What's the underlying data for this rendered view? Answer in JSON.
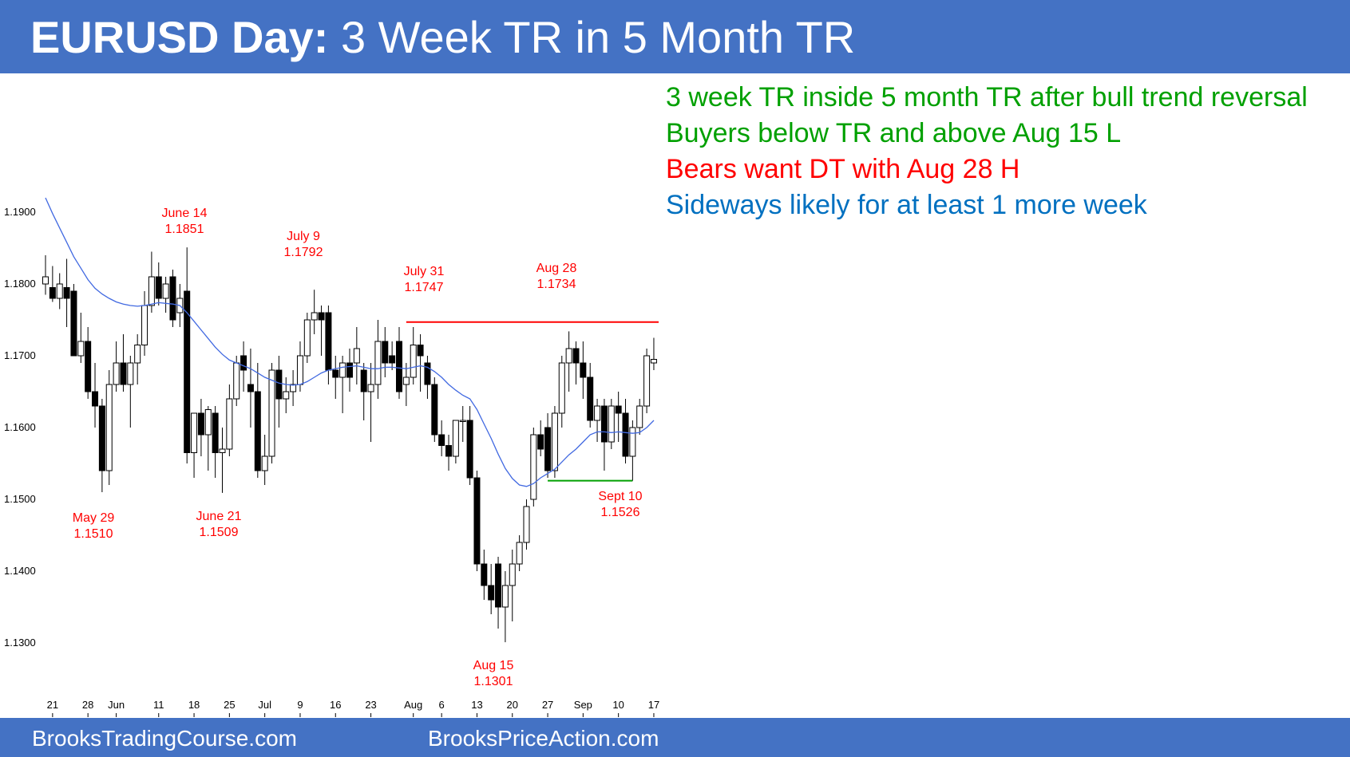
{
  "header": {
    "title_bold": "EURUSD Day:",
    "title_rest": " 3 Week TR in 5 Month TR",
    "background": "#4472c4"
  },
  "notes": [
    {
      "text": "3 week TR inside 5 month TR after bull trend reversal",
      "color": "#00a000"
    },
    {
      "text": "Buyers below TR and above Aug 15 L",
      "color": "#00a000"
    },
    {
      "text": "Bears want DT with Aug 28 H",
      "color": "#ff0000"
    },
    {
      "text": "Sideways likely for at least 1 more week",
      "color": "#0070c0"
    }
  ],
  "footer": {
    "left": "BrooksTradingCourse.com",
    "right": "BrooksPriceAction.com"
  },
  "chart_data": {
    "type": "candlestick",
    "ylim": [
      1.128,
      1.1925
    ],
    "yticks": [
      "1.1900",
      "1.1800",
      "1.1700",
      "1.1600",
      "1.1500",
      "1.1400",
      "1.1300"
    ],
    "x_tick_labels": [
      {
        "label": "21",
        "bar": 1
      },
      {
        "label": "28",
        "bar": 6
      },
      {
        "label": "Jun",
        "bar": 10
      },
      {
        "label": "11",
        "bar": 16
      },
      {
        "label": "18",
        "bar": 21
      },
      {
        "label": "25",
        "bar": 26
      },
      {
        "label": "Jul",
        "bar": 31
      },
      {
        "label": "9",
        "bar": 36
      },
      {
        "label": "16",
        "bar": 41
      },
      {
        "label": "23",
        "bar": 46
      },
      {
        "label": "Aug",
        "bar": 52
      },
      {
        "label": "6",
        "bar": 56
      },
      {
        "label": "13",
        "bar": 61
      },
      {
        "label": "20",
        "bar": 66
      },
      {
        "label": "27",
        "bar": 71
      },
      {
        "label": "Sep",
        "bar": 76
      },
      {
        "label": "10",
        "bar": 81
      },
      {
        "label": "17",
        "bar": 86
      }
    ],
    "candles": [
      [
        1.18,
        1.184,
        1.1785,
        1.181
      ],
      [
        1.1795,
        1.1825,
        1.1775,
        1.178
      ],
      [
        1.178,
        1.1815,
        1.1765,
        1.18
      ],
      [
        1.1795,
        1.1835,
        1.174,
        1.178
      ],
      [
        1.179,
        1.18,
        1.17,
        1.17
      ],
      [
        1.17,
        1.176,
        1.169,
        1.172
      ],
      [
        1.172,
        1.174,
        1.164,
        1.165
      ],
      [
        1.165,
        1.169,
        1.16,
        1.163
      ],
      [
        1.163,
        1.164,
        1.151,
        1.154
      ],
      [
        1.154,
        1.168,
        1.152,
        1.166
      ],
      [
        1.166,
        1.172,
        1.165,
        1.169
      ],
      [
        1.169,
        1.173,
        1.165,
        1.166
      ],
      [
        1.166,
        1.17,
        1.16,
        1.169
      ],
      [
        1.169,
        1.173,
        1.166,
        1.1715
      ],
      [
        1.1715,
        1.179,
        1.17,
        1.177
      ],
      [
        1.177,
        1.1845,
        1.176,
        1.181
      ],
      [
        1.181,
        1.183,
        1.177,
        1.178
      ],
      [
        1.178,
        1.181,
        1.176,
        1.18
      ],
      [
        1.181,
        1.182,
        1.174,
        1.175
      ],
      [
        1.176,
        1.18,
        1.174,
        1.178
      ],
      [
        1.179,
        1.1851,
        1.155,
        1.1565
      ],
      [
        1.1565,
        1.162,
        1.153,
        1.162
      ],
      [
        1.162,
        1.164,
        1.156,
        1.159
      ],
      [
        1.159,
        1.163,
        1.154,
        1.1625
      ],
      [
        1.162,
        1.163,
        1.153,
        1.1565
      ],
      [
        1.1565,
        1.16,
        1.1509,
        1.157
      ],
      [
        1.157,
        1.166,
        1.156,
        1.164
      ],
      [
        1.164,
        1.17,
        1.163,
        1.169
      ],
      [
        1.17,
        1.172,
        1.165,
        1.168
      ],
      [
        1.166,
        1.171,
        1.16,
        1.165
      ],
      [
        1.165,
        1.169,
        1.153,
        1.154
      ],
      [
        1.154,
        1.159,
        1.152,
        1.156
      ],
      [
        1.156,
        1.169,
        1.155,
        1.168
      ],
      [
        1.168,
        1.17,
        1.16,
        1.164
      ],
      [
        1.164,
        1.167,
        1.162,
        1.165
      ],
      [
        1.165,
        1.168,
        1.163,
        1.166
      ],
      [
        1.166,
        1.172,
        1.165,
        1.17
      ],
      [
        1.17,
        1.176,
        1.169,
        1.175
      ],
      [
        1.175,
        1.1792,
        1.173,
        1.176
      ],
      [
        1.176,
        1.177,
        1.17,
        1.175
      ],
      [
        1.176,
        1.177,
        1.166,
        1.168
      ],
      [
        1.168,
        1.17,
        1.164,
        1.167
      ],
      [
        1.167,
        1.17,
        1.162,
        1.169
      ],
      [
        1.169,
        1.171,
        1.165,
        1.167
      ],
      [
        1.169,
        1.174,
        1.166,
        1.171
      ],
      [
        1.168,
        1.169,
        1.161,
        1.165
      ],
      [
        1.165,
        1.169,
        1.158,
        1.166
      ],
      [
        1.166,
        1.175,
        1.164,
        1.172
      ],
      [
        1.172,
        1.174,
        1.167,
        1.169
      ],
      [
        1.17,
        1.172,
        1.168,
        1.169
      ],
      [
        1.172,
        1.174,
        1.164,
        1.165
      ],
      [
        1.166,
        1.169,
        1.163,
        1.167
      ],
      [
        1.167,
        1.174,
        1.166,
        1.1715
      ],
      [
        1.1715,
        1.173,
        1.165,
        1.17
      ],
      [
        1.169,
        1.17,
        1.164,
        1.166
      ],
      [
        1.166,
        1.167,
        1.158,
        1.159
      ],
      [
        1.159,
        1.161,
        1.156,
        1.1575
      ],
      [
        1.1575,
        1.159,
        1.154,
        1.156
      ],
      [
        1.156,
        1.161,
        1.155,
        1.161
      ],
      [
        1.161,
        1.163,
        1.158,
        1.161
      ],
      [
        1.161,
        1.163,
        1.152,
        1.153
      ],
      [
        1.153,
        1.154,
        1.14,
        1.141
      ],
      [
        1.141,
        1.143,
        1.136,
        1.138
      ],
      [
        1.138,
        1.141,
        1.134,
        1.136
      ],
      [
        1.141,
        1.142,
        1.132,
        1.135
      ],
      [
        1.135,
        1.14,
        1.1301,
        1.138
      ],
      [
        1.138,
        1.143,
        1.133,
        1.141
      ],
      [
        1.141,
        1.145,
        1.14,
        1.144
      ],
      [
        1.144,
        1.15,
        1.143,
        1.149
      ],
      [
        1.15,
        1.16,
        1.149,
        1.159
      ],
      [
        1.159,
        1.161,
        1.156,
        1.157
      ],
      [
        1.16,
        1.162,
        1.153,
        1.154
      ],
      [
        1.154,
        1.163,
        1.153,
        1.162
      ],
      [
        1.162,
        1.17,
        1.16,
        1.169
      ],
      [
        1.169,
        1.1734,
        1.165,
        1.171
      ],
      [
        1.171,
        1.172,
        1.166,
        1.169
      ],
      [
        1.169,
        1.172,
        1.164,
        1.167
      ],
      [
        1.167,
        1.169,
        1.16,
        1.161
      ],
      [
        1.161,
        1.164,
        1.158,
        1.163
      ],
      [
        1.163,
        1.164,
        1.154,
        1.158
      ],
      [
        1.158,
        1.164,
        1.157,
        1.163
      ],
      [
        1.163,
        1.165,
        1.158,
        1.162
      ],
      [
        1.162,
        1.164,
        1.155,
        1.156
      ],
      [
        1.156,
        1.161,
        1.1526,
        1.16
      ],
      [
        1.16,
        1.164,
        1.159,
        1.163
      ],
      [
        1.163,
        1.171,
        1.162,
        1.17
      ],
      [
        1.169,
        1.1725,
        1.168,
        1.1695
      ]
    ],
    "ema": [
      1.192,
      1.1898,
      1.1878,
      1.1858,
      1.1838,
      1.1822,
      1.1806,
      1.1794,
      1.1786,
      1.178,
      1.1775,
      1.1772,
      1.177,
      1.1769,
      1.177,
      1.1772,
      1.1774,
      1.1773,
      1.1772,
      1.177,
      1.176,
      1.1748,
      1.1736,
      1.1724,
      1.1712,
      1.1702,
      1.1694,
      1.169,
      1.1686,
      1.1682,
      1.1676,
      1.167,
      1.1666,
      1.1662,
      1.166,
      1.1659,
      1.166,
      1.1664,
      1.167,
      1.1676,
      1.168,
      1.1682,
      1.1684,
      1.1685,
      1.1686,
      1.1684,
      1.1682,
      1.1682,
      1.1684,
      1.1684,
      1.1683,
      1.1682,
      1.1684,
      1.1686,
      1.1684,
      1.1678,
      1.167,
      1.166,
      1.1652,
      1.1645,
      1.164,
      1.1625,
      1.1605,
      1.1585,
      1.1563,
      1.1543,
      1.1529,
      1.152,
      1.1518,
      1.1522,
      1.153,
      1.1536,
      1.1542,
      1.1552,
      1.1562,
      1.157,
      1.158,
      1.159,
      1.1594,
      1.1594,
      1.1593,
      1.1594,
      1.1593,
      1.1592,
      1.1593,
      1.16,
      1.161
    ],
    "annotations": [
      {
        "label": "June 14",
        "value": "1.1851"
      },
      {
        "label": "July 9",
        "value": "1.1792"
      },
      {
        "label": "July 31",
        "value": "1.1747"
      },
      {
        "label": "Aug 28",
        "value": "1.1734"
      },
      {
        "label": "May 29",
        "value": "1.1510"
      },
      {
        "label": "June 21",
        "value": "1.1509"
      },
      {
        "label": "Sept 10",
        "value": "1.1526"
      },
      {
        "label": "Aug 15",
        "value": "1.1301"
      }
    ],
    "resistance_line": {
      "value": 1.1747,
      "from_bar": 51,
      "color": "#ff0000"
    },
    "support_line": {
      "value": 1.1526,
      "from_bar": 71,
      "to_bar": 83,
      "color": "#00a000"
    },
    "colors": {
      "bull": "#ffffff",
      "bear": "#000000",
      "ema": "#4169e1",
      "annotation": "#ff0000",
      "tick": "#000000"
    }
  }
}
